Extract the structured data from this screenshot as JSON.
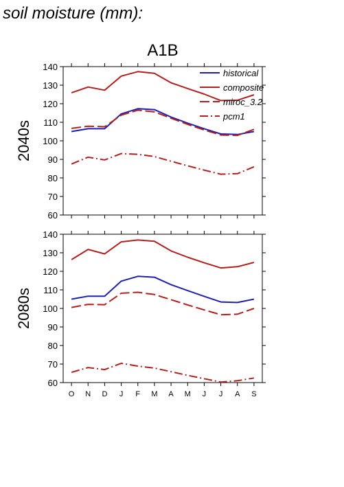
{
  "figure": {
    "header": "soil moisture (mm):",
    "title": "A1B"
  },
  "colors": {
    "historical": "#1f1fb0",
    "projection": "#b21f1f"
  },
  "chart_data": [
    {
      "type": "line",
      "row_label": "2040s",
      "categories": [
        "O",
        "N",
        "D",
        "J",
        "F",
        "M",
        "A",
        "M",
        "J",
        "J",
        "A",
        "S"
      ],
      "ylim": [
        60,
        140
      ],
      "yticks": [
        60,
        70,
        80,
        90,
        100,
        110,
        120,
        130,
        140
      ],
      "grid": false,
      "legend": "top-right",
      "series": [
        {
          "name": "historical",
          "style": "solid",
          "color": "#1f1fb0",
          "values": [
            105,
            106.5,
            106.5,
            114.5,
            117.3,
            116.8,
            112.8,
            109.5,
            106.5,
            103.7,
            103.4,
            105
          ]
        },
        {
          "name": "composite",
          "style": "solid",
          "color": "#b21f1f",
          "values": [
            125.9,
            129,
            127.3,
            134.9,
            137.3,
            136.4,
            131.3,
            128.2,
            125.2,
            121.7,
            121.9,
            124.8
          ]
        },
        {
          "name": "miroc_3.2",
          "style": "dashed",
          "color": "#b21f1f",
          "values": [
            106.7,
            107.9,
            107.6,
            113.8,
            116.5,
            115.6,
            112.2,
            108.9,
            105.8,
            103.1,
            102.9,
            106.2
          ]
        },
        {
          "name": "pcm1",
          "style": "dashdot",
          "color": "#b21f1f",
          "values": [
            87.5,
            91.2,
            89.7,
            93.1,
            92.7,
            91.5,
            89,
            86.5,
            84.2,
            82,
            82.3,
            86
          ]
        }
      ]
    },
    {
      "type": "line",
      "row_label": "2080s",
      "categories": [
        "O",
        "N",
        "D",
        "J",
        "F",
        "M",
        "A",
        "M",
        "J",
        "J",
        "A",
        "S"
      ],
      "ylim": [
        60,
        140
      ],
      "yticks": [
        60,
        70,
        80,
        90,
        100,
        110,
        120,
        130,
        140
      ],
      "grid": false,
      "series": [
        {
          "name": "historical",
          "style": "solid",
          "color": "#1f1fb0",
          "values": [
            105,
            106.6,
            106.6,
            114.7,
            117.3,
            116.8,
            112.8,
            109.6,
            106.5,
            103.5,
            103.2,
            105
          ]
        },
        {
          "name": "composite",
          "style": "solid",
          "color": "#b21f1f",
          "values": [
            126.3,
            131.8,
            129.4,
            135.9,
            136.9,
            136.2,
            131,
            127.6,
            124.6,
            121.8,
            122.5,
            124.8
          ]
        },
        {
          "name": "miroc_3.2",
          "style": "dashed",
          "color": "#b21f1f",
          "values": [
            100.5,
            102.2,
            102,
            108.2,
            108.7,
            107.5,
            104.7,
            101.9,
            99.2,
            96.6,
            96.9,
            100
          ]
        },
        {
          "name": "pcm1",
          "style": "dashdot",
          "color": "#b21f1f",
          "values": [
            65.5,
            68.1,
            67,
            70.4,
            68.9,
            67.8,
            65.9,
            63.9,
            62.1,
            60.3,
            61,
            62.5
          ]
        }
      ]
    }
  ]
}
